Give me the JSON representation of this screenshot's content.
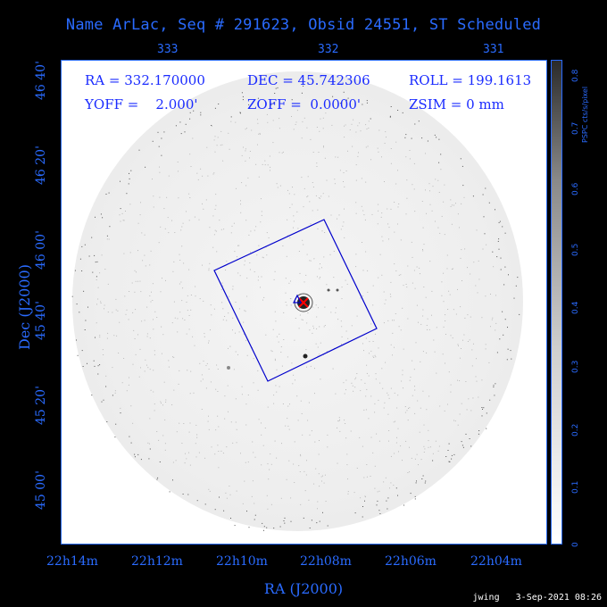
{
  "header": {
    "title": "Name ArLac, Seq # 291623, Obsid 24551, ST Scheduled"
  },
  "readout": {
    "ra": "RA = 332.170000",
    "dec": "DEC = 45.742306",
    "roll": "ROLL = 199.1613",
    "yoff": "YOFF =    2.000'",
    "zoff": "ZOFF =  0.0000'",
    "zsim": "ZSIM = 0 mm"
  },
  "axes": {
    "x_label": "RA (J2000)",
    "y_label": "Dec (J2000)",
    "top_ticks": [
      "333",
      "332",
      "331"
    ],
    "bottom_ticks": [
      "22h14m",
      "22h12m",
      "22h10m",
      "22h08m",
      "22h06m",
      "22h04m"
    ],
    "left_ticks": [
      "46 40'",
      "46 20'",
      "46 00'",
      "45 40'",
      "45 20'",
      "45 00'"
    ]
  },
  "colorbar": {
    "label": "PSPC cts/s/pixel",
    "ticks": [
      "0",
      "0.1",
      "0.2",
      "0.3",
      "0.4",
      "0.5",
      "0.6",
      "0.7",
      "0.8"
    ]
  },
  "footer": {
    "stamp": "jwing   3-Sep-2021 08:26"
  },
  "colors": {
    "accent": "#2a6bff",
    "readout": "#1a2bff",
    "box": "#0000cc",
    "marker": "#ff0000"
  }
}
